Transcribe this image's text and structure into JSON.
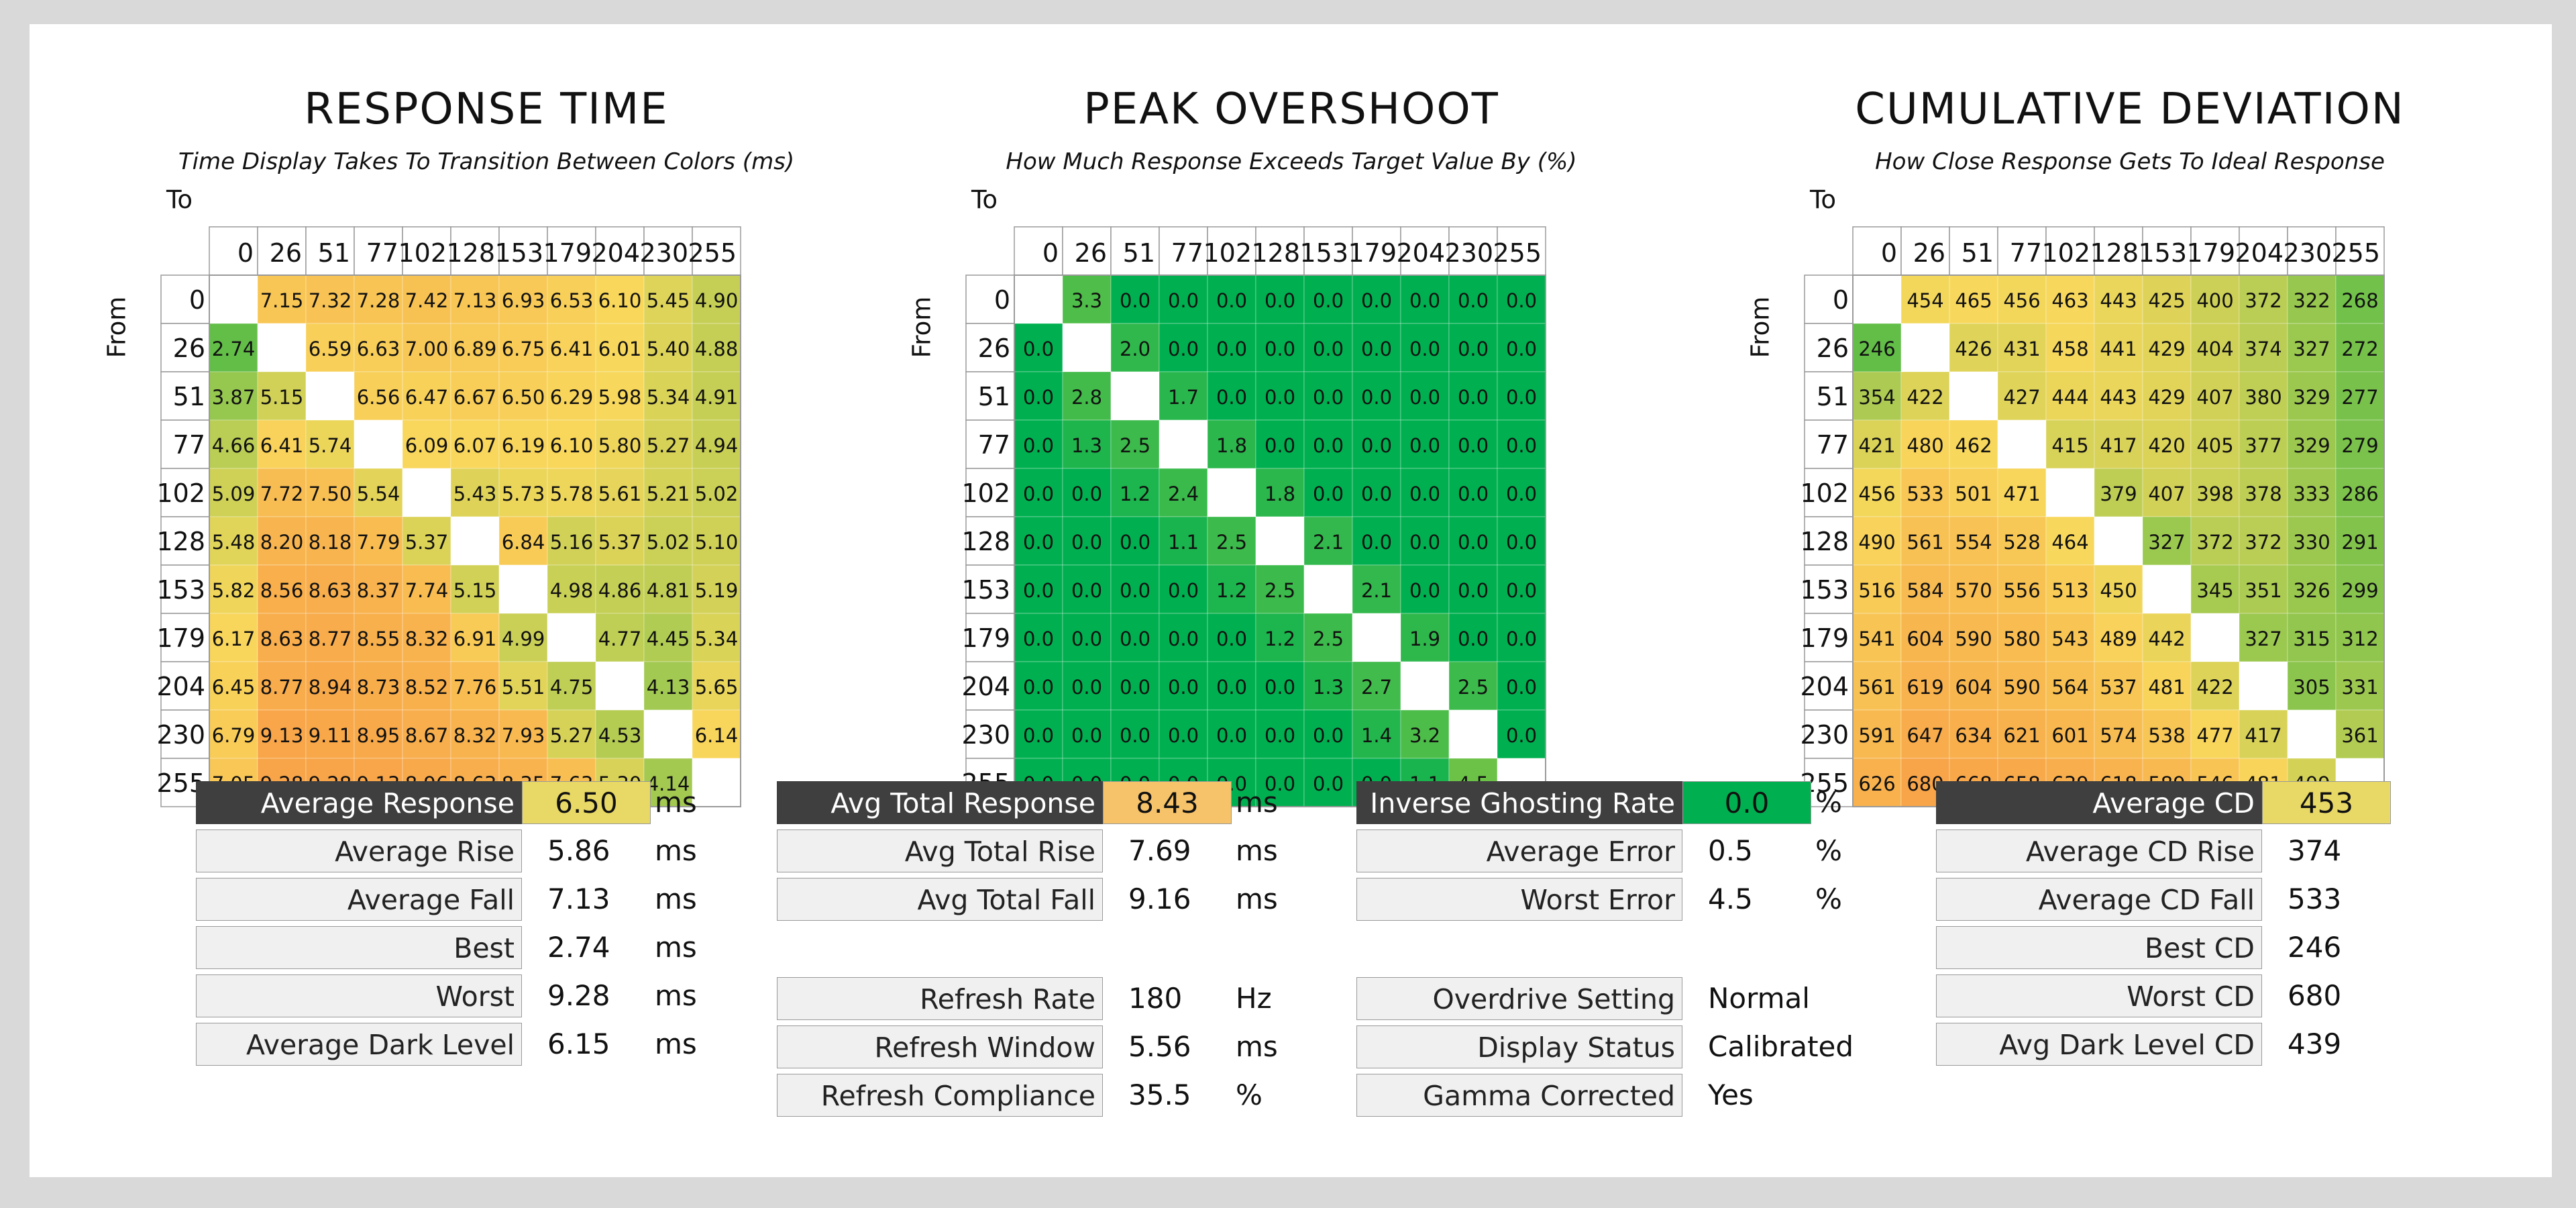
{
  "response_time": {
    "title": "RESPONSE TIME",
    "subtitle": "Time Display Takes To Transition Between Colors (ms)",
    "to_label": "To",
    "from_label": "From",
    "levels": [
      "0",
      "26",
      "51",
      "77",
      "102",
      "128",
      "153",
      "179",
      "204",
      "230",
      "255"
    ],
    "decimals": 2,
    "matrix": [
      [
        null,
        7.15,
        7.32,
        7.28,
        7.42,
        7.13,
        6.93,
        6.53,
        6.1,
        5.45,
        4.9
      ],
      [
        2.74,
        null,
        6.59,
        6.63,
        7.0,
        6.89,
        6.75,
        6.41,
        6.01,
        5.4,
        4.88
      ],
      [
        3.87,
        5.15,
        null,
        6.56,
        6.47,
        6.67,
        6.5,
        6.29,
        5.98,
        5.34,
        4.91
      ],
      [
        4.66,
        6.41,
        5.74,
        null,
        6.09,
        6.07,
        6.19,
        6.1,
        5.8,
        5.27,
        4.94
      ],
      [
        5.09,
        7.72,
        7.5,
        5.54,
        null,
        5.43,
        5.73,
        5.78,
        5.61,
        5.21,
        5.02
      ],
      [
        5.48,
        8.2,
        8.18,
        7.79,
        5.37,
        null,
        6.84,
        5.16,
        5.37,
        5.02,
        5.1
      ],
      [
        5.82,
        8.56,
        8.63,
        8.37,
        7.74,
        5.15,
        null,
        4.98,
        4.86,
        4.81,
        5.19
      ],
      [
        6.17,
        8.63,
        8.77,
        8.55,
        8.32,
        6.91,
        4.99,
        null,
        4.77,
        4.45,
        5.34
      ],
      [
        6.45,
        8.77,
        8.94,
        8.73,
        8.52,
        7.76,
        5.51,
        4.75,
        null,
        4.13,
        5.65
      ],
      [
        6.79,
        9.13,
        9.11,
        8.95,
        8.67,
        8.32,
        7.93,
        5.27,
        4.53,
        null,
        6.14
      ],
      [
        7.05,
        9.28,
        9.28,
        9.13,
        8.96,
        8.63,
        8.35,
        7.63,
        5.3,
        4.14,
        null
      ]
    ]
  },
  "peak_overshoot": {
    "title": "PEAK OVERSHOOT",
    "subtitle": "How Much Response Exceeds Target Value By (%)",
    "to_label": "To",
    "from_label": "From",
    "levels": [
      "0",
      "26",
      "51",
      "77",
      "102",
      "128",
      "153",
      "179",
      "204",
      "230",
      "255"
    ],
    "decimals": 1,
    "matrix": [
      [
        null,
        3.3,
        0.0,
        0.0,
        0.0,
        0.0,
        0.0,
        0.0,
        0.0,
        0.0,
        0.0
      ],
      [
        0.0,
        null,
        2.0,
        0.0,
        0.0,
        0.0,
        0.0,
        0.0,
        0.0,
        0.0,
        0.0
      ],
      [
        0.0,
        2.8,
        null,
        1.7,
        0.0,
        0.0,
        0.0,
        0.0,
        0.0,
        0.0,
        0.0
      ],
      [
        0.0,
        1.3,
        2.5,
        null,
        1.8,
        0.0,
        0.0,
        0.0,
        0.0,
        0.0,
        0.0
      ],
      [
        0.0,
        0.0,
        1.2,
        2.4,
        null,
        1.8,
        0.0,
        0.0,
        0.0,
        0.0,
        0.0
      ],
      [
        0.0,
        0.0,
        0.0,
        1.1,
        2.5,
        null,
        2.1,
        0.0,
        0.0,
        0.0,
        0.0
      ],
      [
        0.0,
        0.0,
        0.0,
        0.0,
        1.2,
        2.5,
        null,
        2.1,
        0.0,
        0.0,
        0.0
      ],
      [
        0.0,
        0.0,
        0.0,
        0.0,
        0.0,
        1.2,
        2.5,
        null,
        1.9,
        0.0,
        0.0
      ],
      [
        0.0,
        0.0,
        0.0,
        0.0,
        0.0,
        0.0,
        1.3,
        2.7,
        null,
        2.5,
        0.0
      ],
      [
        0.0,
        0.0,
        0.0,
        0.0,
        0.0,
        0.0,
        0.0,
        1.4,
        3.2,
        null,
        0.0
      ],
      [
        0.0,
        0.0,
        0.0,
        0.0,
        0.0,
        0.0,
        0.0,
        0.0,
        1.1,
        4.5,
        null
      ]
    ]
  },
  "cumulative_deviation": {
    "title": "CUMULATIVE DEVIATION",
    "subtitle": "How Close Response Gets To Ideal Response",
    "to_label": "To",
    "from_label": "From",
    "levels": [
      "0",
      "26",
      "51",
      "77",
      "102",
      "128",
      "153",
      "179",
      "204",
      "230",
      "255"
    ],
    "decimals": 0,
    "matrix": [
      [
        null,
        454,
        465,
        456,
        463,
        443,
        425,
        400,
        372,
        322,
        268
      ],
      [
        246,
        null,
        426,
        431,
        458,
        441,
        429,
        404,
        374,
        327,
        272
      ],
      [
        354,
        422,
        null,
        427,
        444,
        443,
        429,
        407,
        380,
        329,
        277
      ],
      [
        421,
        480,
        462,
        null,
        415,
        417,
        420,
        405,
        377,
        329,
        279
      ],
      [
        456,
        533,
        501,
        471,
        null,
        379,
        407,
        398,
        378,
        333,
        286
      ],
      [
        490,
        561,
        554,
        528,
        464,
        null,
        327,
        372,
        372,
        330,
        291
      ],
      [
        516,
        584,
        570,
        556,
        513,
        450,
        null,
        345,
        351,
        326,
        299
      ],
      [
        541,
        604,
        590,
        580,
        543,
        489,
        442,
        null,
        327,
        315,
        312
      ],
      [
        561,
        619,
        604,
        590,
        564,
        537,
        481,
        422,
        null,
        305,
        331
      ],
      [
        591,
        647,
        634,
        621,
        601,
        574,
        538,
        477,
        417,
        null,
        361
      ],
      [
        626,
        680,
        668,
        658,
        639,
        618,
        589,
        546,
        481,
        409,
        null
      ]
    ]
  },
  "stats": {
    "response": [
      {
        "label": "Average Response",
        "value": "6.50",
        "unit": "ms",
        "highlight": "#e8d865"
      },
      {
        "label": "Average Rise",
        "value": "5.86",
        "unit": "ms"
      },
      {
        "label": "Average Fall",
        "value": "7.13",
        "unit": "ms"
      },
      {
        "label": "Best",
        "value": "2.74",
        "unit": "ms"
      },
      {
        "label": "Worst",
        "value": "9.28",
        "unit": "ms"
      },
      {
        "label": "Average Dark Level",
        "value": "6.15",
        "unit": "ms"
      }
    ],
    "total": [
      {
        "label": "Avg Total Response",
        "value": "8.43",
        "unit": "ms",
        "highlight": "#f6c36a"
      },
      {
        "label": "Avg Total Rise",
        "value": "7.69",
        "unit": "ms"
      },
      {
        "label": "Avg Total Fall",
        "value": "9.16",
        "unit": "ms"
      }
    ],
    "refresh": [
      {
        "label": "Refresh Rate",
        "value": "180",
        "unit": "Hz"
      },
      {
        "label": "Refresh Window",
        "value": "5.56",
        "unit": "ms"
      },
      {
        "label": "Refresh Compliance",
        "value": "35.5",
        "unit": "%"
      }
    ],
    "overshoot": [
      {
        "label": "Inverse Ghosting Rate",
        "value": "0.0",
        "unit": "%",
        "highlight": "#00b050"
      },
      {
        "label": "Average Error",
        "value": "0.5",
        "unit": "%"
      },
      {
        "label": "Worst Error",
        "value": "4.5",
        "unit": "%"
      }
    ],
    "settings": [
      {
        "label": "Overdrive Setting",
        "value": "Normal"
      },
      {
        "label": "Display Status",
        "value": "Calibrated"
      },
      {
        "label": "Gamma Corrected",
        "value": "Yes"
      }
    ],
    "cd": [
      {
        "label": "Average CD",
        "value": "453",
        "highlight": "#e8d865"
      },
      {
        "label": "Average CD Rise",
        "value": "374"
      },
      {
        "label": "Average CD Fall",
        "value": "533"
      },
      {
        "label": "Best CD",
        "value": "246"
      },
      {
        "label": "Worst CD",
        "value": "680"
      },
      {
        "label": "Avg Dark Level CD",
        "value": "439"
      }
    ]
  }
}
